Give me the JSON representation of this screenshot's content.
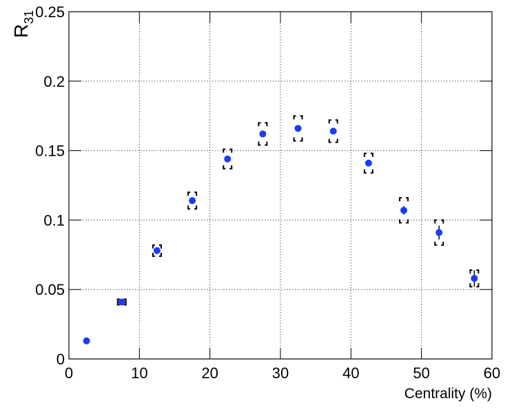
{
  "chart_data": {
    "type": "scatter",
    "x_label": "Centrality (%)",
    "y_label": {
      "main": "R",
      "sub": "31"
    },
    "x": [
      2.5,
      7.5,
      12.5,
      17.5,
      22.5,
      27.5,
      32.5,
      37.5,
      42.5,
      47.5,
      52.5,
      57.5
    ],
    "values": [
      0.013,
      0.041,
      0.078,
      0.114,
      0.144,
      0.162,
      0.166,
      0.164,
      0.141,
      0.107,
      0.091,
      0.058
    ],
    "stat_errors": [
      0.001,
      0.001,
      0.001,
      0.002,
      0.002,
      0.002,
      0.002,
      0.002,
      0.002,
      0.003,
      0.005,
      0.006
    ],
    "sys_errors": [
      null,
      0.002,
      0.004,
      0.006,
      0.007,
      0.008,
      0.009,
      0.008,
      0.007,
      0.009,
      0.009,
      0.006
    ],
    "color": "#1a3cf5",
    "xlim": [
      0,
      60
    ],
    "xticks": [
      0,
      10,
      20,
      30,
      40,
      50,
      60
    ],
    "ylim": [
      0,
      0.25
    ],
    "yticks": [
      0,
      0.05,
      0.1,
      0.15,
      0.2,
      0.25
    ],
    "grid": true
  }
}
